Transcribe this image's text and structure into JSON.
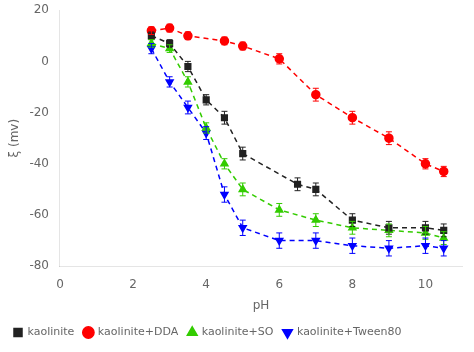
{
  "chart_data": {
    "type": "line",
    "xlabel": "pH",
    "ylabel": "ξ (mv)",
    "xlim": [
      0,
      11
    ],
    "ylim": [
      -80,
      20
    ],
    "xticks": [
      0,
      2,
      4,
      6,
      8,
      10
    ],
    "yticks": [
      -80,
      -60,
      -40,
      -20,
      0,
      20
    ],
    "grid": false,
    "legend": "lower left",
    "series": [
      {
        "name": "kaolinite",
        "color": "#222222",
        "marker": "square",
        "line_style": "dashed",
        "x": [
          2.5,
          3.0,
          3.5,
          4.0,
          4.5,
          5.0,
          6.5,
          7.0,
          8.0,
          9.0,
          10.0,
          10.5
        ],
        "values": [
          10,
          7,
          -2,
          -15,
          -22,
          -36,
          -48,
          -50,
          -62,
          -65,
          -65,
          -66
        ],
        "yerr": [
          1.5,
          1.5,
          2,
          2,
          2.5,
          2.5,
          2.5,
          2.5,
          2.5,
          2.5,
          2.5,
          2.5
        ]
      },
      {
        "name": "kaolinite+DDA",
        "color": "#ff0000",
        "marker": "circle",
        "line_style": "dashed",
        "x": [
          2.5,
          3.0,
          3.5,
          4.5,
          5.0,
          6.0,
          7.0,
          8.0,
          9.0,
          10.0,
          10.5
        ],
        "values": [
          12,
          13,
          10,
          8,
          6,
          1,
          -13,
          -22,
          -30,
          -40,
          -43
        ],
        "yerr": [
          1.5,
          1.5,
          1.5,
          1.5,
          1.5,
          2,
          2.5,
          2.5,
          2.5,
          2,
          2
        ]
      },
      {
        "name": "kaolinite+SO",
        "color": "#33cc00",
        "marker": "triangle",
        "line_style": "dashed",
        "x": [
          2.5,
          3.0,
          3.5,
          4.0,
          4.5,
          5.0,
          6.0,
          7.0,
          8.0,
          9.0,
          10.0,
          10.5
        ],
        "values": [
          7,
          5,
          -8,
          -26,
          -40,
          -50,
          -58,
          -62,
          -65,
          -66,
          -67,
          -69
        ],
        "yerr": [
          1.5,
          1.5,
          2,
          2,
          2,
          2.5,
          2.5,
          2.5,
          2.5,
          2.5,
          2.5,
          2.5
        ]
      },
      {
        "name": "kaolinite+Tween80",
        "color": "#0000ff",
        "marker": "triangle_down",
        "line_style": "dashed",
        "x": [
          2.5,
          3.0,
          3.5,
          4.0,
          4.5,
          5.0,
          6.0,
          7.0,
          8.0,
          9.0,
          10.0,
          10.5
        ],
        "values": [
          5,
          -8,
          -18,
          -28,
          -52,
          -65,
          -70,
          -70,
          -72,
          -73,
          -72,
          -73
        ],
        "yerr": [
          2,
          2,
          2.5,
          2.5,
          3,
          3,
          3,
          3,
          3,
          3,
          3,
          3
        ]
      }
    ]
  }
}
